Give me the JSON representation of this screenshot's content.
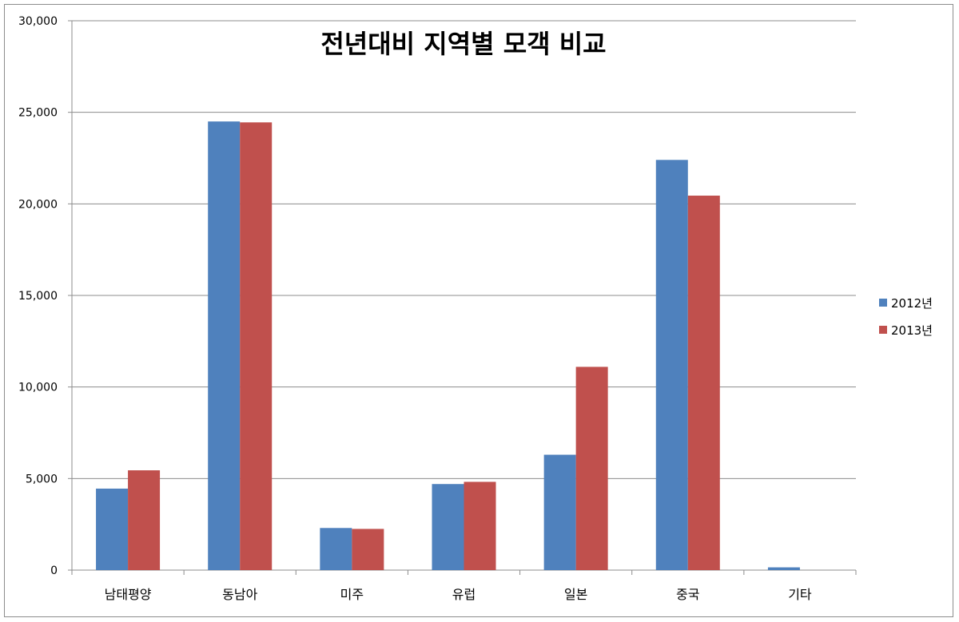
{
  "chart_data": {
    "type": "bar",
    "title": "전년대비 지역별 모객 비교",
    "categories": [
      "남태평양",
      "동남아",
      "미주",
      "유럽",
      "일본",
      "중국",
      "기타"
    ],
    "series": [
      {
        "name": "2012년",
        "color": "#4f81bd",
        "values": [
          4450,
          24500,
          2300,
          4700,
          6300,
          22400,
          150
        ]
      },
      {
        "name": "2013년",
        "color": "#c0504d",
        "values": [
          5450,
          24450,
          2250,
          4820,
          11100,
          20450,
          0
        ]
      }
    ],
    "ylim": [
      0,
      30000
    ],
    "yticks": [
      "0",
      "5,000",
      "10,000",
      "15,000",
      "20,000",
      "25,000",
      "30,000"
    ],
    "ytick_values": [
      0,
      5000,
      10000,
      15000,
      20000,
      25000,
      30000
    ],
    "xlabel": "",
    "ylabel": "",
    "grid": true,
    "legend_position": "right"
  }
}
